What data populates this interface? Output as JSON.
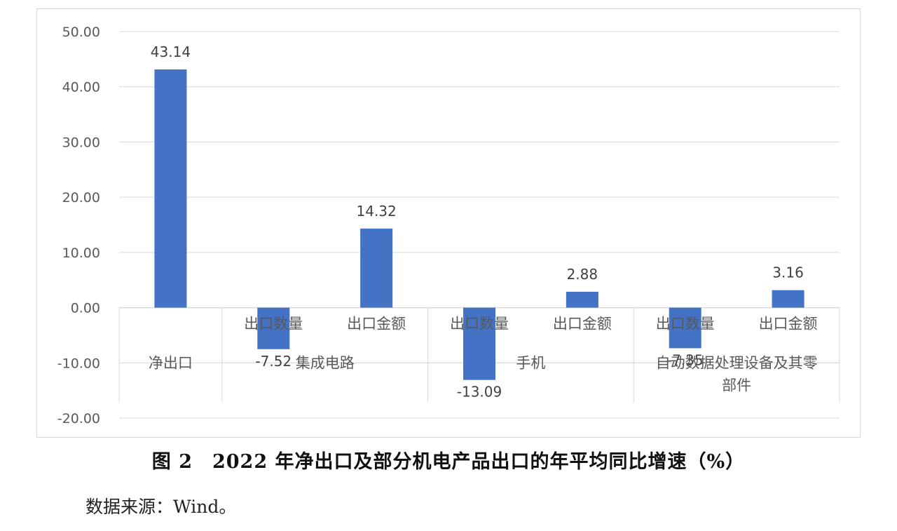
{
  "caption": "图 2　2022 年净出口及部分机电产品出口的年平均同比增速（%）",
  "source": "数据来源：Wind。",
  "chart_data": {
    "type": "bar",
    "title": "",
    "xlabel": "",
    "ylabel": "",
    "ylim": [
      -20,
      50
    ],
    "yticks": [
      -20,
      -10,
      0,
      10,
      20,
      30,
      40,
      50
    ],
    "tick_format_decimals": 2,
    "grid": true,
    "legend": "none",
    "bar_color": "#4472c4",
    "groups": [
      {
        "label": [
          "净出口"
        ],
        "categories": [
          ""
        ],
        "values": [
          43.14
        ],
        "data_labels": [
          "43.14"
        ]
      },
      {
        "label": [
          "集成电路"
        ],
        "categories": [
          "出口数量",
          "出口金额"
        ],
        "values": [
          -7.52,
          14.32
        ],
        "data_labels": [
          "-7.52",
          "14.32"
        ]
      },
      {
        "label": [
          "手机"
        ],
        "categories": [
          "出口数量",
          "出口金额"
        ],
        "values": [
          -13.09,
          2.88
        ],
        "data_labels": [
          "-13.09",
          "2.88"
        ]
      },
      {
        "label": [
          "自动数据处理设备及其零",
          "部件"
        ],
        "categories": [
          "出口数量",
          "出口金额"
        ],
        "values": [
          -7.35,
          3.16
        ],
        "data_labels": [
          "-7.35",
          "3.16"
        ]
      }
    ]
  }
}
